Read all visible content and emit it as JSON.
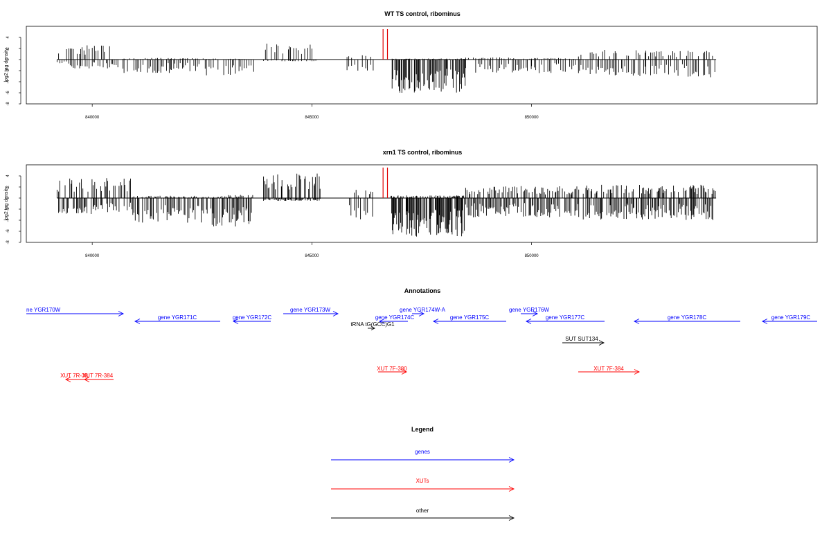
{
  "chart_data": [
    {
      "type": "bar",
      "title": "WT TS control, ribominus",
      "ylabel": "log2 tag density",
      "ylim": [
        -8,
        6
      ],
      "yticks": [
        -8,
        -6,
        -4,
        -2,
        0,
        2,
        4
      ],
      "xlim": [
        838500,
        856500
      ],
      "xticks": [
        840000,
        845000,
        850000
      ],
      "track_start": 839200,
      "track_end": 854200,
      "baseline": 0,
      "bar_color": "#000000",
      "highlight_color": "#e00000",
      "highlights": [
        {
          "x": 846620,
          "y": 5.5
        },
        {
          "x": 846720,
          "y": 5.5
        }
      ],
      "segments": [
        {
          "from": 839200,
          "to": 839500,
          "pos": 2.3,
          "neg": 1.0,
          "step": 40
        },
        {
          "from": 839500,
          "to": 840700,
          "pos": 2.6,
          "neg": 1.6,
          "step": 40
        },
        {
          "from": 840700,
          "to": 841800,
          "pos": 0.3,
          "neg": 2.5,
          "step": 40
        },
        {
          "from": 841800,
          "to": 842600,
          "pos": 0.3,
          "neg": 2.2,
          "step": 40
        },
        {
          "from": 842600,
          "to": 843700,
          "pos": 0.2,
          "neg": 3.0,
          "step": 45
        },
        {
          "from": 843900,
          "to": 845100,
          "pos": 2.9,
          "neg": 0.3,
          "step": 35
        },
        {
          "from": 845800,
          "to": 846400,
          "pos": 0.8,
          "neg": 2.0,
          "step": 55
        },
        {
          "from": 846800,
          "to": 848500,
          "pos": 0.2,
          "neg": 6.0,
          "step": 22
        },
        {
          "from": 848500,
          "to": 850000,
          "pos": 0.4,
          "neg": 2.5,
          "step": 45
        },
        {
          "from": 850000,
          "to": 851000,
          "pos": 0.3,
          "neg": 2.5,
          "step": 45
        },
        {
          "from": 851000,
          "to": 852600,
          "pos": 1.8,
          "neg": 3.0,
          "step": 38
        },
        {
          "from": 852600,
          "to": 854200,
          "pos": 1.6,
          "neg": 3.2,
          "step": 40
        }
      ]
    },
    {
      "type": "bar",
      "title": "xrn1 TS control, ribominus",
      "ylabel": "log2 tag density",
      "ylim": [
        -8,
        6
      ],
      "yticks": [
        -8,
        -6,
        -4,
        -2,
        0,
        2,
        4
      ],
      "xlim": [
        838500,
        856500
      ],
      "xticks": [
        840000,
        845000,
        850000
      ],
      "track_start": 839200,
      "track_end": 854200,
      "baseline": 0,
      "bar_color": "#000000",
      "highlight_color": "#e00000",
      "highlights": [
        {
          "x": 846620,
          "y": 5.5
        },
        {
          "x": 846720,
          "y": 5.5
        }
      ],
      "segments": [
        {
          "from": 839200,
          "to": 840900,
          "pos": 3.6,
          "neg": 3.0,
          "step": 25
        },
        {
          "from": 840900,
          "to": 842600,
          "pos": 0.4,
          "neg": 4.5,
          "step": 25
        },
        {
          "from": 842600,
          "to": 843700,
          "pos": 0.6,
          "neg": 5.2,
          "step": 25
        },
        {
          "from": 843900,
          "to": 845200,
          "pos": 4.6,
          "neg": 0.5,
          "step": 22
        },
        {
          "from": 845800,
          "to": 846400,
          "pos": 1.5,
          "neg": 4.0,
          "step": 40
        },
        {
          "from": 846800,
          "to": 848500,
          "pos": 0.5,
          "neg": 7.0,
          "step": 16
        },
        {
          "from": 848500,
          "to": 851000,
          "pos": 2.2,
          "neg": 3.5,
          "step": 24
        },
        {
          "from": 851000,
          "to": 854200,
          "pos": 2.4,
          "neg": 4.0,
          "step": 24
        }
      ]
    }
  ],
  "annotations": {
    "title": "Annotations",
    "genes": [
      {
        "label": "ne YGR170W",
        "dir": "right"
      },
      {
        "label": "gene YGR171C",
        "dir": "left"
      },
      {
        "label": "gene YGR172C",
        "dir": "left"
      },
      {
        "label": "gene YGR173W",
        "dir": "right"
      },
      {
        "label": "gene YGR174W-A",
        "dir": "right"
      },
      {
        "label": "gene YGR174C",
        "dir": "left"
      },
      {
        "label": "gene YGR175C",
        "dir": "left"
      },
      {
        "label": "gene YGR176W",
        "dir": "right"
      },
      {
        "label": "gene YGR177C",
        "dir": "left"
      },
      {
        "label": "gene YGR178C",
        "dir": "left"
      },
      {
        "label": "gene YGR179C",
        "dir": "left"
      }
    ],
    "others": [
      {
        "label": "tRNA tG(GCC)G1",
        "dir": "right"
      },
      {
        "label": "SUT SUT134",
        "dir": "right"
      }
    ],
    "xuts": [
      {
        "label": "XUT 7R-38",
        "dir": "left"
      },
      {
        "label": "XUT 7R-384",
        "dir": "left"
      },
      {
        "label": "XUT 7F-380",
        "dir": "right"
      },
      {
        "label": "XUT 7F-384",
        "dir": "right"
      }
    ],
    "colors": {
      "genes": "#0000ff",
      "xuts": "#ff0000",
      "other": "#000000"
    }
  },
  "legend": {
    "title": "Legend",
    "items": [
      {
        "label": "genes",
        "color": "#0000ff"
      },
      {
        "label": "XUTs",
        "color": "#ff0000"
      },
      {
        "label": "other",
        "color": "#000000"
      }
    ]
  }
}
